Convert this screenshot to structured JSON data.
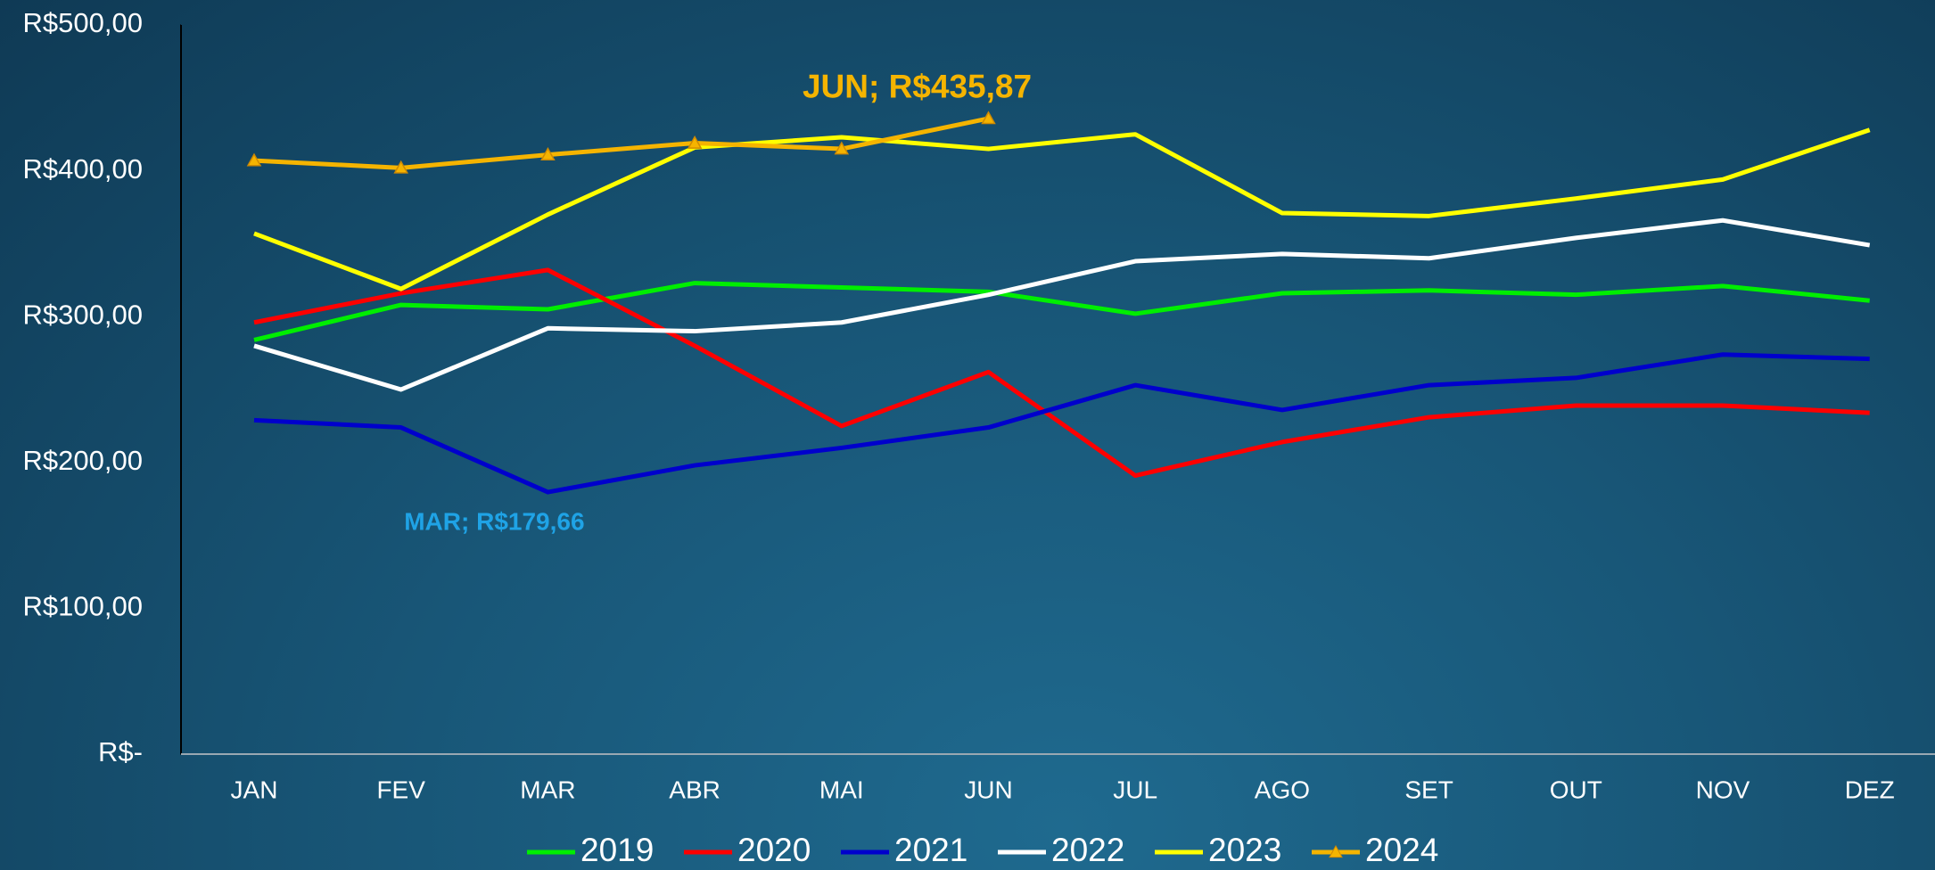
{
  "chart_data": {
    "type": "line",
    "categories": [
      "JAN",
      "FEV",
      "MAR",
      "ABR",
      "MAI",
      "JUN",
      "JUL",
      "AGO",
      "SET",
      "OUT",
      "NOV",
      "DEZ"
    ],
    "series": [
      {
        "name": "2019",
        "color": "#00ee00",
        "values": [
          284,
          308,
          305,
          323,
          320,
          317,
          302,
          316,
          318,
          315,
          321,
          311
        ]
      },
      {
        "name": "2020",
        "color": "#ff0000",
        "values": [
          296,
          316,
          332,
          280,
          225,
          262,
          191,
          214,
          231,
          239,
          239,
          234
        ]
      },
      {
        "name": "2021",
        "color": "#0000cc",
        "values": [
          229,
          224,
          179.66,
          198,
          210,
          224,
          253,
          236,
          253,
          258,
          274,
          271
        ]
      },
      {
        "name": "2022",
        "color": "#ffffff",
        "values": [
          280,
          250,
          292,
          290,
          296,
          315,
          338,
          343,
          340,
          354,
          366,
          349
        ]
      },
      {
        "name": "2023",
        "color": "#ffff00",
        "values": [
          357,
          319,
          370,
          416,
          423,
          415,
          425,
          371,
          369,
          381,
          394,
          428
        ]
      },
      {
        "name": "2024",
        "color": "#f5b400",
        "marker": "triangle",
        "values": [
          407,
          402,
          411,
          419,
          415,
          435.87,
          null,
          null,
          null,
          null,
          null,
          null
        ]
      }
    ],
    "annotations": [
      {
        "text": "JUN;  R$435,87",
        "series": 5,
        "index": 5,
        "color": "#f5b400"
      },
      {
        "text": "MAR;  R$179,66",
        "series": 2,
        "index": 2,
        "color": "#1fa3e6"
      }
    ],
    "ylim": [
      0,
      500
    ],
    "yticks": [
      {
        "value": 0,
        "label": "R$-"
      },
      {
        "value": 100,
        "label": "R$100,00"
      },
      {
        "value": 200,
        "label": "R$200,00"
      },
      {
        "value": 300,
        "label": "R$300,00"
      },
      {
        "value": 400,
        "label": "R$400,00"
      },
      {
        "value": 500,
        "label": "R$500,00"
      }
    ],
    "grid": false,
    "legend": "bottom"
  }
}
